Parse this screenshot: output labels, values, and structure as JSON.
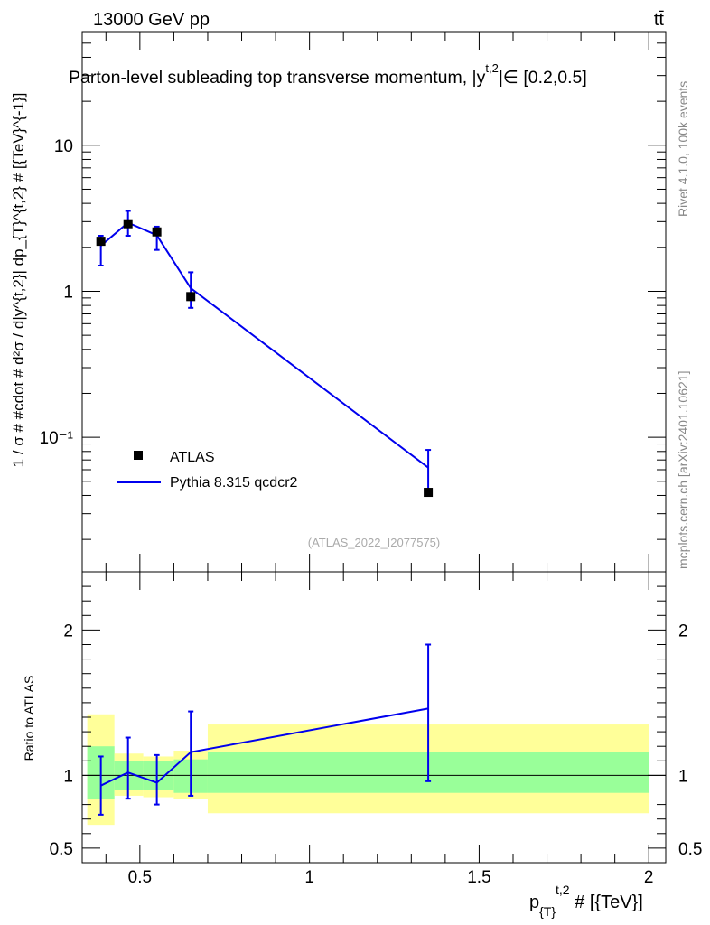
{
  "header": {
    "left": "13000 GeV pp",
    "right": "tt̄"
  },
  "plot_title": "Parton-level subleading top transverse momentum, |y",
  "plot_title_sup": "t,2",
  "plot_title_tail": "|∈ [0.2,0.5]",
  "side_labels": {
    "rivet": "Rivet 4.1.0,  100k events",
    "mcplots": "mcplots.cern.ch [arXiv:2401.10621]"
  },
  "watermark": "(ATLAS_2022_I2077575)",
  "colors": {
    "mc": "#0000ee",
    "data": "#000000",
    "band_inner": "#99ff99",
    "band_outer": "#ffff99"
  },
  "legend": {
    "data_label": "ATLAS",
    "mc_label": "Pythia 8.315 qcdcr2"
  },
  "axis_labels": {
    "y_main": "1 / σ # #cdot # d²σ / d|y^{t,2}| dp_{T}^{t,2} # [{TeV}^{-1}]",
    "y_ratio": "Ratio to ATLAS",
    "x": "p",
    "x_sub": "{T}",
    "x_sup": "t,2",
    "x_tail": " # [{TeV}]"
  },
  "chart_data": {
    "type": "line",
    "xlim": [
      0.33,
      2.05
    ],
    "main": {
      "yscale": "log",
      "ylim": [
        0.012,
        60
      ],
      "major_ticks": [
        0.1,
        1,
        10
      ],
      "major_tick_labels": [
        "10⁻¹",
        "1",
        "10"
      ],
      "data": {
        "name": "ATLAS",
        "x": [
          0.385,
          0.465,
          0.55,
          0.65,
          1.35
        ],
        "y": [
          2.2,
          2.9,
          2.55,
          0.92,
          0.042
        ]
      },
      "mc": {
        "name": "Pythia 8.315 qcdcr2",
        "x": [
          0.385,
          0.465,
          0.55,
          0.65,
          1.35
        ],
        "y": [
          2.05,
          2.95,
          2.42,
          1.05,
          0.062
        ],
        "err_lo": [
          0.55,
          0.55,
          0.5,
          0.28,
          0.02
        ],
        "err_hi": [
          0.35,
          0.6,
          0.35,
          0.3,
          0.02
        ]
      }
    },
    "ratio": {
      "ylim": [
        0.4,
        2.4
      ],
      "ticks": [
        0.5,
        1,
        2
      ],
      "tick_labels": [
        "0.5",
        "1",
        "2"
      ],
      "bands": [
        {
          "x0": 0.345,
          "x1": 0.425,
          "inner": [
            0.84,
            1.2
          ],
          "outer": [
            0.66,
            1.42
          ]
        },
        {
          "x0": 0.425,
          "x1": 0.51,
          "inner": [
            0.9,
            1.1
          ],
          "outer": [
            0.86,
            1.15
          ]
        },
        {
          "x0": 0.51,
          "x1": 0.6,
          "inner": [
            0.9,
            1.1
          ],
          "outer": [
            0.85,
            1.13
          ]
        },
        {
          "x0": 0.6,
          "x1": 0.7,
          "inner": [
            0.88,
            1.11
          ],
          "outer": [
            0.84,
            1.17
          ]
        },
        {
          "x0": 0.7,
          "x1": 2.0,
          "inner": [
            0.88,
            1.16
          ],
          "outer": [
            0.74,
            1.35
          ]
        }
      ],
      "mc": {
        "x": [
          0.385,
          0.465,
          0.55,
          0.65,
          1.35
        ],
        "y": [
          0.93,
          1.02,
          0.95,
          1.16,
          1.46
        ],
        "err_lo": [
          0.2,
          0.18,
          0.15,
          0.3,
          0.5
        ],
        "err_hi": [
          0.2,
          0.24,
          0.19,
          0.28,
          0.44
        ]
      }
    },
    "x_ticks": [
      0.5,
      1,
      1.5,
      2
    ],
    "x_tick_labels": [
      "0.5",
      "1",
      "1.5",
      "2"
    ]
  }
}
